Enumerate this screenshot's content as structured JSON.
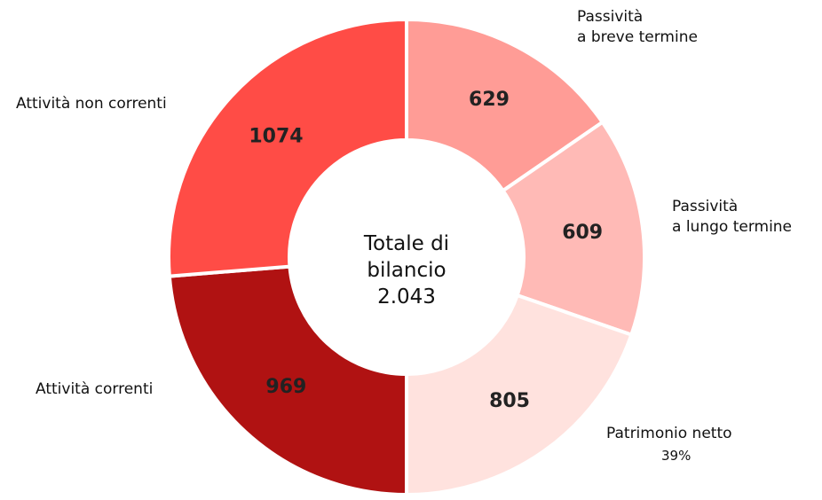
{
  "chart_data": {
    "type": "donut",
    "categories": [
      "Passività\na breve termine",
      "Passività\na lungo termine",
      "Patrimonio netto",
      "Attività correnti",
      "Attività non correnti"
    ],
    "values": [
      629,
      609,
      805,
      969,
      1074
    ],
    "colors": [
      "#ff9c96",
      "#ffbab6",
      "#ffe2de",
      "#b01212",
      "#ff4c46"
    ],
    "center_text": "Totale di\nbilancio",
    "total": {
      "value": 2043,
      "label": "2.043"
    },
    "annotations": [
      {
        "category": 2,
        "text": "39%"
      }
    ]
  }
}
